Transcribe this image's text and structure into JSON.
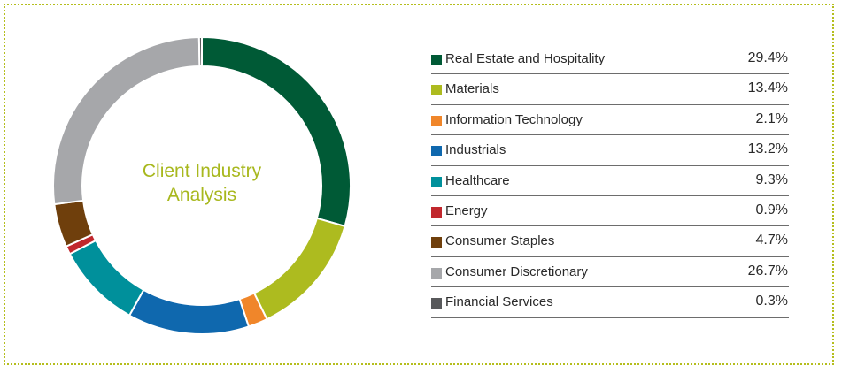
{
  "chart_data": {
    "type": "pie",
    "title": "Client Industry Analysis",
    "title_lines": [
      "Client Industry",
      "Analysis"
    ],
    "slices": [
      {
        "label": "Real Estate and Hospitality",
        "value": 29.4,
        "display": "29.4%",
        "color": "#005a36"
      },
      {
        "label": "Materials",
        "value": 13.4,
        "display": "13.4%",
        "color": "#adbb1f"
      },
      {
        "label": "Information Technology",
        "value": 2.1,
        "display": "2.1%",
        "color": "#f0862a"
      },
      {
        "label": "Industrials",
        "value": 13.2,
        "display": "13.2%",
        "color": "#0f68ae"
      },
      {
        "label": "Healthcare",
        "value": 9.3,
        "display": "9.3%",
        "color": "#00909b"
      },
      {
        "label": "Energy",
        "value": 0.9,
        "display": "0.9%",
        "color": "#c1272d"
      },
      {
        "label": "Consumer Staples",
        "value": 4.7,
        "display": "4.7%",
        "color": "#6f3f0c"
      },
      {
        "label": "Consumer Discretionary",
        "value": 26.7,
        "display": "26.7%",
        "color": "#a6a7aa"
      },
      {
        "label": "Financial Services",
        "value": 0.3,
        "display": "0.3%",
        "color": "#58595b"
      }
    ],
    "legend_position": "right"
  },
  "frame_color": "#b5be1e",
  "title_color": "#a8b81e"
}
